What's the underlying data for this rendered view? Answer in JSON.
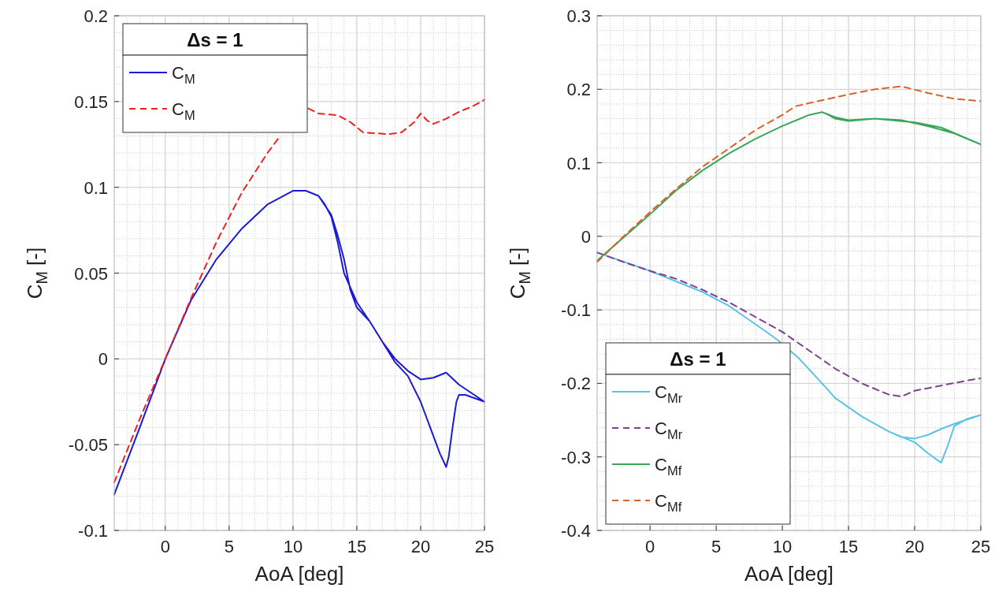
{
  "chart_data": [
    {
      "type": "line",
      "xlabel": "AoA [deg]",
      "ylabel": "C$_{M}$ [-]",
      "legend_title": "Δs = 1",
      "legend": "top left",
      "grid": true,
      "xlim": [
        -4,
        25
      ],
      "xticks": [
        0,
        5,
        10,
        15,
        20,
        25
      ],
      "ylim": [
        -0.1,
        0.2
      ],
      "yticks": [
        -0.1,
        -0.05,
        0,
        0.05,
        0.1,
        0.15,
        0.2
      ],
      "series": [
        {
          "name": "C$_{M}$",
          "color": "#1a1ad6",
          "line_style": "solid",
          "x": [
            -4,
            -2,
            0,
            2,
            4,
            6,
            8,
            10,
            11,
            12,
            12.5,
            13,
            13.5,
            14,
            15,
            16,
            17,
            18,
            19,
            20,
            21,
            22,
            23,
            25,
            23.5,
            23,
            22.8,
            22.5,
            22.2,
            22,
            21.5,
            21,
            20,
            19,
            18,
            16,
            15,
            14.5,
            14,
            13.5,
            13,
            12
          ],
          "values": [
            -0.079,
            -0.04,
            0,
            0.034,
            0.058,
            0.076,
            0.09,
            0.098,
            0.098,
            0.095,
            0.09,
            0.083,
            0.068,
            0.05,
            0.033,
            0.022,
            0.01,
            0,
            -0.007,
            -0.012,
            -0.011,
            -0.008,
            -0.015,
            -0.025,
            -0.021,
            -0.021,
            -0.025,
            -0.04,
            -0.057,
            -0.063,
            -0.055,
            -0.045,
            -0.025,
            -0.01,
            -0.002,
            0.022,
            0.03,
            0.04,
            0.058,
            0.072,
            0.084,
            0.095
          ]
        },
        {
          "name": "C$_{M}$",
          "color": "#ee2222",
          "line_style": "dashed",
          "x": [
            -4,
            -2,
            0,
            2,
            4,
            6,
            8,
            9,
            9.3,
            11.2,
            12,
            13.5,
            14.5,
            15.5,
            17.5,
            18.5,
            19.5,
            20,
            20.5,
            21,
            22,
            23,
            24,
            25
          ],
          "values": [
            -0.072,
            -0.035,
            0,
            0.035,
            0.068,
            0.097,
            0.12,
            0.13,
            null,
            0.146,
            0.143,
            0.142,
            0.138,
            0.132,
            0.131,
            0.132,
            0.138,
            0.143,
            0.139,
            0.137,
            0.14,
            0.144,
            0.147,
            0.151
          ]
        }
      ]
    },
    {
      "type": "line",
      "xlabel": "AoA [deg]",
      "ylabel": "C$_{M}$ [-]",
      "legend_title": "Δs = 1",
      "legend": "bottom left",
      "grid": true,
      "xlim": [
        -4,
        25
      ],
      "xticks": [
        0,
        5,
        10,
        15,
        20,
        25
      ],
      "ylim": [
        -0.4,
        0.3
      ],
      "yticks": [
        -0.4,
        -0.3,
        -0.2,
        -0.1,
        0,
        0.1,
        0.2,
        0.3
      ],
      "series": [
        {
          "name": "C$_{Mr}$",
          "color": "#5bc3e8",
          "line_style": "solid",
          "x": [
            -4,
            0,
            4,
            6,
            8,
            9.5,
            11.2,
            13,
            14,
            16,
            18,
            19,
            20,
            21,
            22,
            23,
            25,
            24,
            23,
            22.5,
            22,
            21,
            20,
            18
          ],
          "values": [
            -0.022,
            -0.047,
            -0.076,
            -0.095,
            -0.12,
            -0.139,
            -0.165,
            -0.2,
            -0.22,
            -0.245,
            -0.265,
            -0.273,
            -0.275,
            -0.27,
            -0.262,
            -0.255,
            -0.243,
            -0.248,
            -0.258,
            -0.285,
            -0.308,
            -0.295,
            -0.28,
            -0.265
          ]
        },
        {
          "name": "C$_{Mr}$",
          "color": "#7e3f8e",
          "line_style": "dashed",
          "x": [
            -4,
            -2,
            0,
            2,
            4,
            6,
            8,
            10,
            12,
            14,
            16,
            18,
            19,
            20,
            22,
            24,
            25
          ],
          "values": [
            -0.022,
            -0.035,
            -0.047,
            -0.058,
            -0.073,
            -0.09,
            -0.11,
            -0.13,
            -0.155,
            -0.18,
            -0.2,
            -0.215,
            -0.218,
            -0.21,
            -0.203,
            -0.196,
            -0.193
          ]
        },
        {
          "name": "C$_{Mf}$",
          "color": "#3aa65a",
          "line_style": "solid",
          "x": [
            -4,
            0,
            2,
            4,
            6,
            8,
            10,
            12,
            13,
            13.5,
            14,
            15,
            17,
            19,
            21,
            23,
            25,
            22,
            20,
            17,
            15,
            14,
            13
          ],
          "values": [
            -0.033,
            0.03,
            0.063,
            0.09,
            0.113,
            0.133,
            0.15,
            0.165,
            0.169,
            0.165,
            0.16,
            0.157,
            0.16,
            0.158,
            0.15,
            0.14,
            0.125,
            0.148,
            0.155,
            0.16,
            0.158,
            0.162,
            0.169
          ]
        },
        {
          "name": "C$_{Mf}$",
          "color": "#d9622b",
          "line_style": "dashed",
          "x": [
            -4,
            -2,
            0,
            2,
            4,
            6,
            8,
            10,
            11,
            13,
            15,
            17,
            19,
            21,
            23,
            25
          ],
          "values": [
            -0.035,
            0,
            0.033,
            0.065,
            0.095,
            0.12,
            0.145,
            0.165,
            0.177,
            0.185,
            0.193,
            0.2,
            0.204,
            0.195,
            0.187,
            0.184
          ]
        }
      ]
    }
  ]
}
